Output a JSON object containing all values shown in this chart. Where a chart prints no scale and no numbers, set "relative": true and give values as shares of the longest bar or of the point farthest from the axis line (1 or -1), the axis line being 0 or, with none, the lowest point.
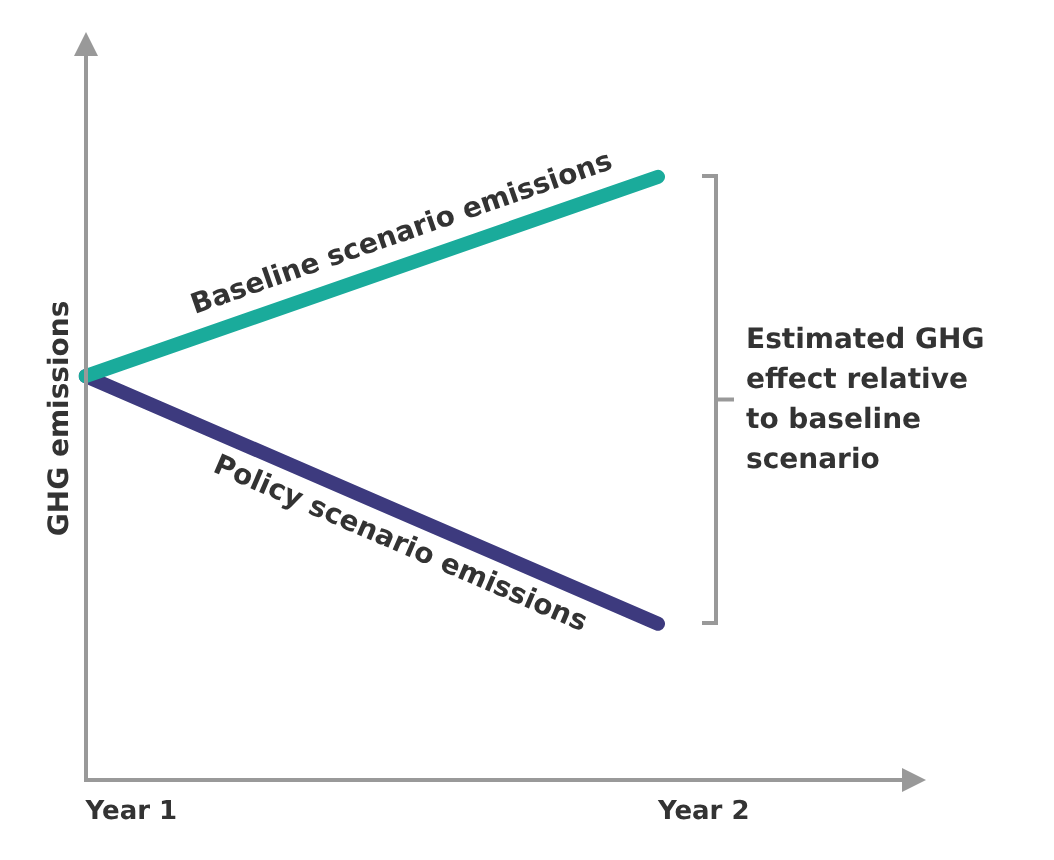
{
  "chart_data": {
    "type": "line",
    "relative": true,
    "ylabel": "GHG emissions",
    "categories": [
      "Year 1",
      "Year 2"
    ],
    "series": [
      {
        "name": "Baseline scenario emissions",
        "color": "#1aab9b",
        "values": [
          0.67,
          1
        ]
      },
      {
        "name": "Policy scenario emissions",
        "color": "#3d3a7e",
        "values": [
          0.67,
          0.26
        ]
      }
    ],
    "annotations": [
      "Estimated GHG effect relative to baseline scenario"
    ],
    "grid": false,
    "legend": false,
    "marker": "none",
    "line_style": "solid"
  }
}
